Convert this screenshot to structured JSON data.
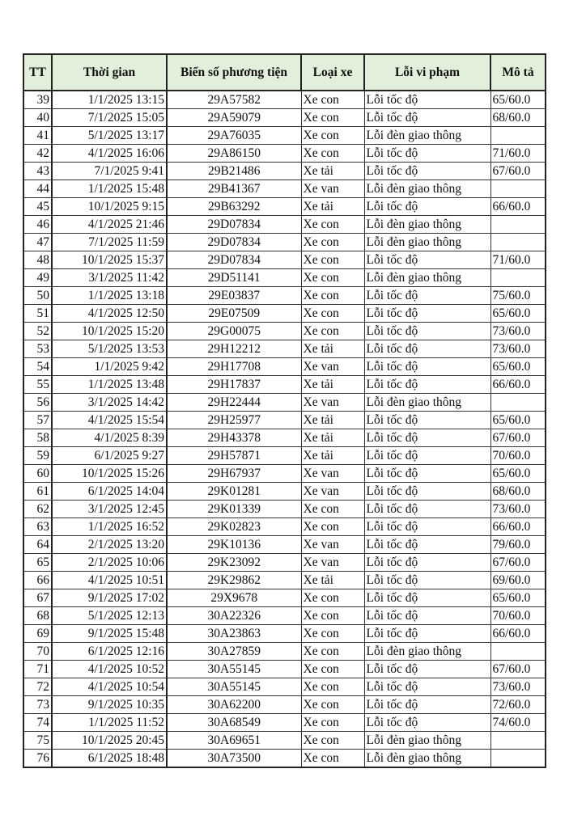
{
  "table": {
    "headers": [
      "TT",
      "Thời gian",
      "Biển số phương tiện",
      "Loại xe",
      "Lỗi vi phạm",
      "Mô tả"
    ],
    "header_bg": "#e2efda",
    "rows": [
      [
        "39",
        "1/1/2025 13:15",
        "29A57582",
        "Xe con",
        "Lỗi tốc độ",
        "65/60.0"
      ],
      [
        "40",
        "7/1/2025 15:05",
        "29A59079",
        "Xe con",
        "Lỗi tốc độ",
        "68/60.0"
      ],
      [
        "41",
        "5/1/2025 13:17",
        "29A76035",
        "Xe con",
        "Lỗi đèn giao thông",
        ""
      ],
      [
        "42",
        "4/1/2025 16:06",
        "29A86150",
        "Xe con",
        "Lỗi tốc độ",
        "71/60.0"
      ],
      [
        "43",
        "7/1/2025 9:41",
        "29B21486",
        "Xe tải",
        "Lỗi tốc độ",
        "67/60.0"
      ],
      [
        "44",
        "1/1/2025 15:48",
        "29B41367",
        "Xe van",
        "Lỗi đèn giao thông",
        ""
      ],
      [
        "45",
        "10/1/2025 9:15",
        "29B63292",
        "Xe tải",
        "Lỗi tốc độ",
        "66/60.0"
      ],
      [
        "46",
        "4/1/2025 21:46",
        "29D07834",
        "Xe con",
        "Lỗi đèn giao thông",
        ""
      ],
      [
        "47",
        "7/1/2025 11:59",
        "29D07834",
        "Xe con",
        "Lỗi đèn giao thông",
        ""
      ],
      [
        "48",
        "10/1/2025 15:37",
        "29D07834",
        "Xe con",
        "Lỗi tốc độ",
        "71/60.0"
      ],
      [
        "49",
        "3/1/2025 11:42",
        "29D51141",
        "Xe con",
        "Lỗi đèn giao thông",
        ""
      ],
      [
        "50",
        "1/1/2025 13:18",
        "29E03837",
        "Xe con",
        "Lỗi tốc độ",
        "75/60.0"
      ],
      [
        "51",
        "4/1/2025 12:50",
        "29E07509",
        "Xe con",
        "Lỗi tốc độ",
        "65/60.0"
      ],
      [
        "52",
        "10/1/2025 15:20",
        "29G00075",
        "Xe con",
        "Lỗi tốc độ",
        "73/60.0"
      ],
      [
        "53",
        "5/1/2025 13:53",
        "29H12212",
        "Xe tải",
        "Lỗi tốc độ",
        "73/60.0"
      ],
      [
        "54",
        "1/1/2025 9:42",
        "29H17708",
        "Xe van",
        "Lỗi tốc độ",
        "65/60.0"
      ],
      [
        "55",
        "1/1/2025 13:48",
        "29H17837",
        "Xe tải",
        "Lỗi tốc độ",
        "66/60.0"
      ],
      [
        "56",
        "3/1/2025 14:42",
        "29H22444",
        "Xe van",
        "Lỗi đèn giao thông",
        ""
      ],
      [
        "57",
        "4/1/2025 15:54",
        "29H25977",
        "Xe tải",
        "Lỗi tốc độ",
        "65/60.0"
      ],
      [
        "58",
        "4/1/2025 8:39",
        "29H43378",
        "Xe tải",
        "Lỗi tốc độ",
        "67/60.0"
      ],
      [
        "59",
        "6/1/2025 9:27",
        "29H57871",
        "Xe tải",
        "Lỗi tốc độ",
        "70/60.0"
      ],
      [
        "60",
        "10/1/2025 15:26",
        "29H67937",
        "Xe van",
        "Lỗi tốc độ",
        "65/60.0"
      ],
      [
        "61",
        "6/1/2025 14:04",
        "29K01281",
        "Xe van",
        "Lỗi tốc độ",
        "68/60.0"
      ],
      [
        "62",
        "3/1/2025 12:45",
        "29K01339",
        "Xe con",
        "Lỗi tốc độ",
        "73/60.0"
      ],
      [
        "63",
        "1/1/2025 16:52",
        "29K02823",
        "Xe con",
        "Lỗi tốc độ",
        "66/60.0"
      ],
      [
        "64",
        "2/1/2025 13:20",
        "29K10136",
        "Xe van",
        "Lỗi tốc độ",
        "79/60.0"
      ],
      [
        "65",
        "2/1/2025 10:06",
        "29K23092",
        "Xe van",
        "Lỗi tốc độ",
        "67/60.0"
      ],
      [
        "66",
        "4/1/2025 10:51",
        "29K29862",
        "Xe tải",
        "Lỗi tốc độ",
        "69/60.0"
      ],
      [
        "67",
        "9/1/2025 17:02",
        "29X9678",
        "Xe con",
        "Lỗi tốc độ",
        "65/60.0"
      ],
      [
        "68",
        "5/1/2025 12:13",
        "30A22326",
        "Xe con",
        "Lỗi tốc độ",
        "70/60.0"
      ],
      [
        "69",
        "9/1/2025 15:48",
        "30A23863",
        "Xe con",
        "Lỗi tốc độ",
        "66/60.0"
      ],
      [
        "70",
        "6/1/2025 12:16",
        "30A27859",
        "Xe con",
        "Lỗi đèn giao thông",
        ""
      ],
      [
        "71",
        "4/1/2025 10:52",
        "30A55145",
        "Xe con",
        "Lỗi tốc độ",
        "67/60.0"
      ],
      [
        "72",
        "4/1/2025 10:54",
        "30A55145",
        "Xe con",
        "Lỗi tốc độ",
        "73/60.0"
      ],
      [
        "73",
        "9/1/2025 10:35",
        "30A62200",
        "Xe con",
        "Lỗi tốc độ",
        "72/60.0"
      ],
      [
        "74",
        "1/1/2025 11:52",
        "30A68549",
        "Xe con",
        "Lỗi tốc độ",
        "74/60.0"
      ],
      [
        "75",
        "10/1/2025 20:45",
        "30A69651",
        "Xe con",
        "Lỗi đèn giao thông",
        ""
      ],
      [
        "76",
        "6/1/2025 18:48",
        "30A73500",
        "Xe con",
        "Lỗi đèn giao thông",
        ""
      ]
    ]
  }
}
